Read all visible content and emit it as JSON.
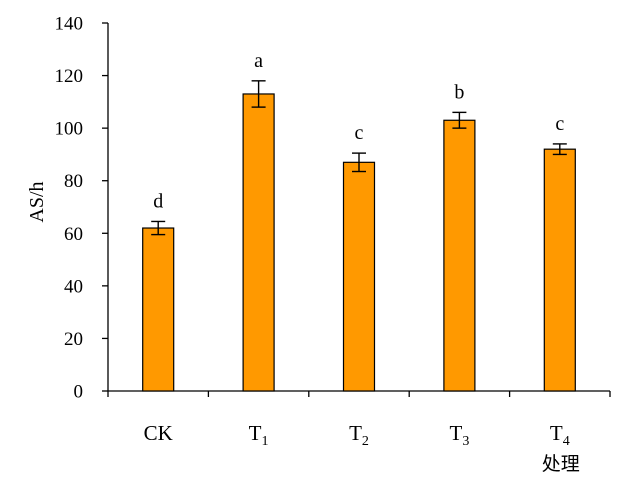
{
  "chart_data": {
    "type": "bar",
    "categories": [
      {
        "base": "CK",
        "sub": ""
      },
      {
        "base": "T",
        "sub": "1"
      },
      {
        "base": "T",
        "sub": "2"
      },
      {
        "base": "T",
        "sub": "3"
      },
      {
        "base": "T",
        "sub": "4"
      }
    ],
    "values": [
      62,
      113,
      87,
      103,
      92
    ],
    "errors": [
      2.5,
      5,
      3.5,
      3,
      2
    ],
    "significance": [
      "d",
      "a",
      "c",
      "b",
      "c"
    ],
    "ylabel": "AS/h",
    "xlabel": "处理",
    "ylim": [
      0,
      140
    ],
    "yticks": [
      0,
      20,
      40,
      60,
      80,
      100,
      120,
      140
    ],
    "grid": false,
    "bar_color": "#FF9900",
    "bar_edge_color": "#000000"
  }
}
